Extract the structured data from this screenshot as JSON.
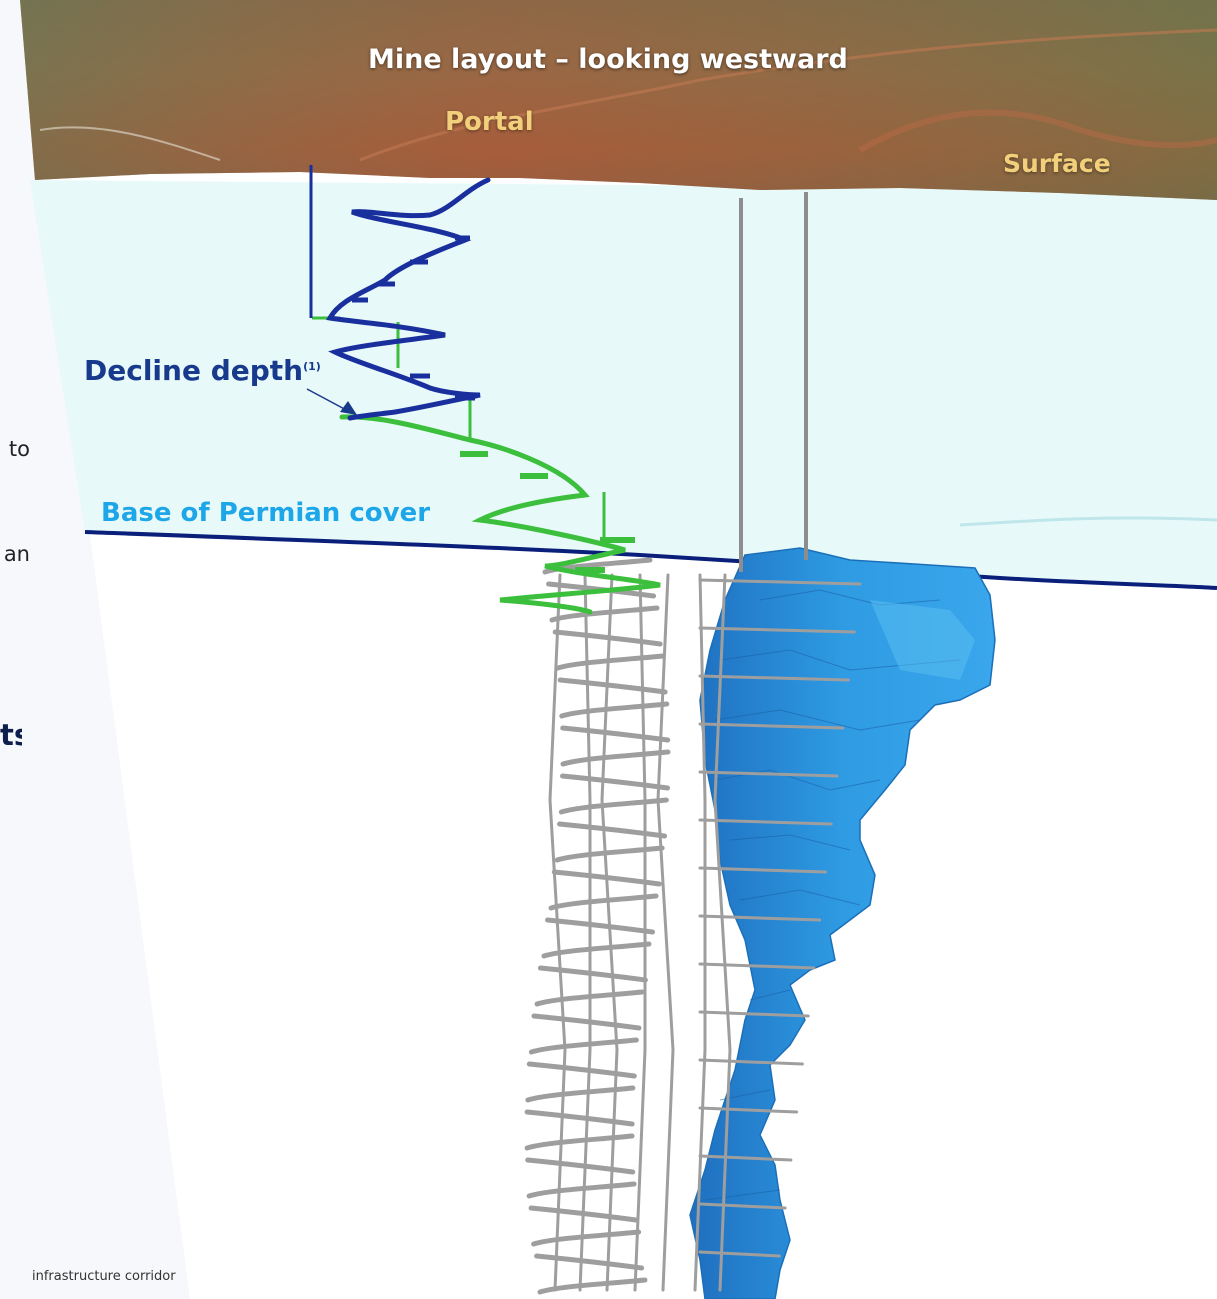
{
  "title": "Mine layout – looking westward",
  "labels": {
    "portal": "Portal",
    "surface": "Surface",
    "decline_depth": "Decline depth",
    "decline_depth_note": "(1)",
    "base_permian": "Base of Permian cover"
  },
  "slide_fragments": [
    "to",
    "an",
    "ts"
  ],
  "footnote": "infrastructure corridor",
  "colors": {
    "cover_zone": "#e8f9fa",
    "base_line": "#0a1f7a",
    "decline_upper": "#1a2f9e",
    "decline_lower": "#3cbf3c",
    "development": "#9e9e9e",
    "orebody": "#2e9be3",
    "terrain": "#9a5a3c",
    "label_gold": "#f2cf7b",
    "label_navy": "#173a8c",
    "label_cyan": "#1ea7e8"
  }
}
